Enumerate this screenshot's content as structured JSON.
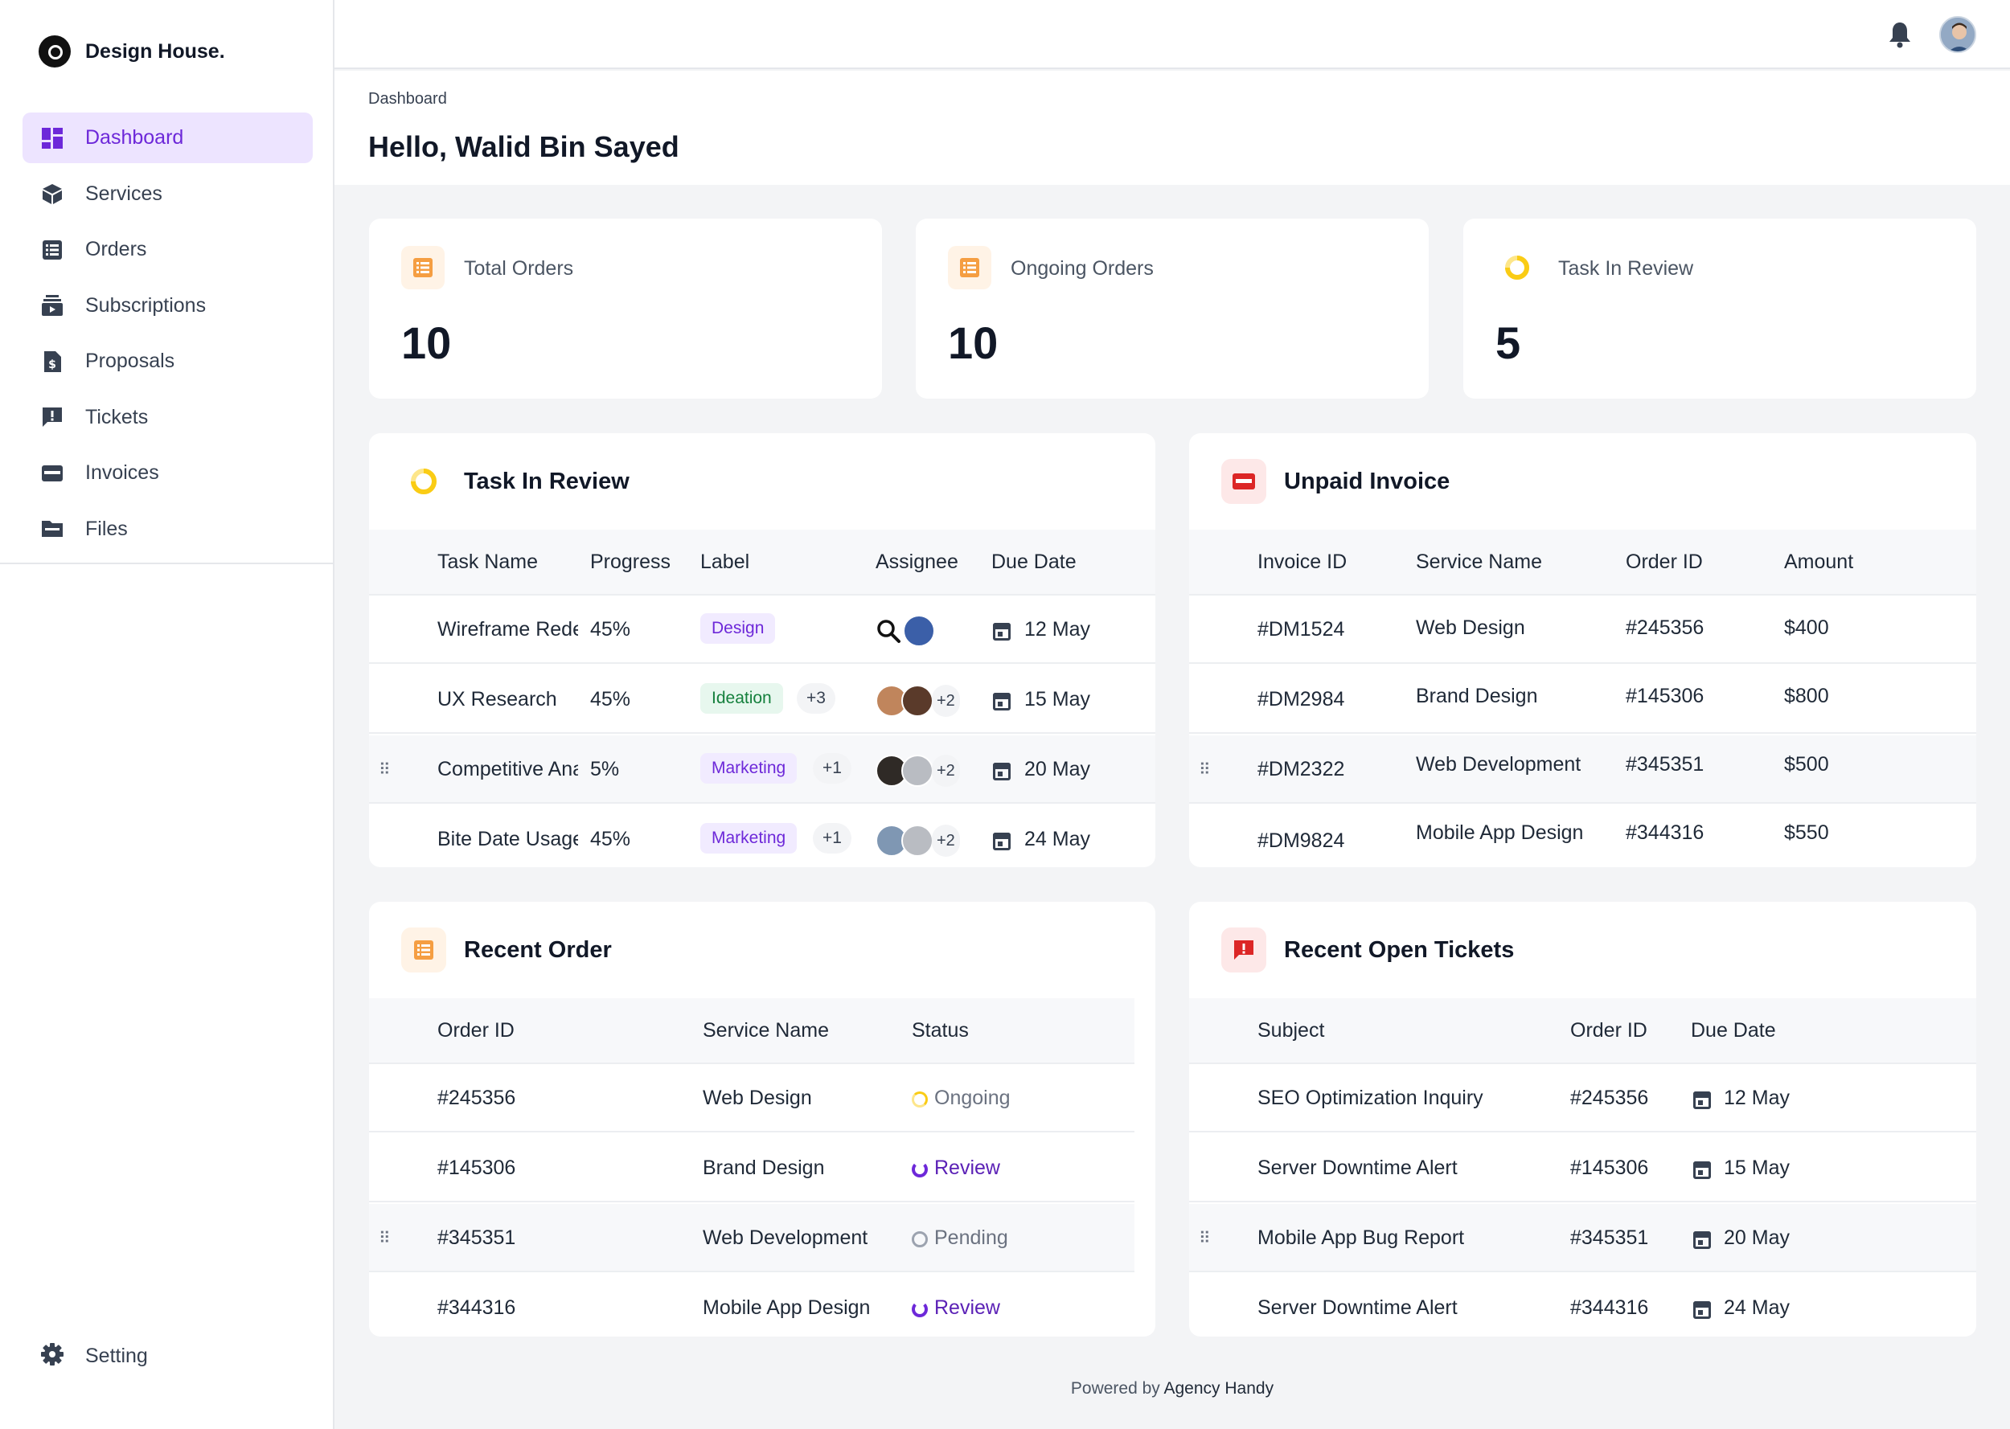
{
  "brand": {
    "name": "Design House."
  },
  "nav": {
    "items": [
      {
        "label": "Dashboard",
        "icon": "dashboard-icon",
        "active": true
      },
      {
        "label": "Services",
        "icon": "cube-icon"
      },
      {
        "label": "Orders",
        "icon": "list-icon"
      },
      {
        "label": "Subscriptions",
        "icon": "subscriptions-icon"
      },
      {
        "label": "Proposals",
        "icon": "dollar-document-icon"
      },
      {
        "label": "Tickets",
        "icon": "ticket-alert-icon"
      },
      {
        "label": "Invoices",
        "icon": "credit-card-icon"
      },
      {
        "label": "Files",
        "icon": "folder-icon"
      }
    ],
    "setting": "Setting"
  },
  "header": {
    "breadcrumb": "Dashboard",
    "greeting": "Hello, Walid Bin Sayed"
  },
  "stats": [
    {
      "title": "Total Orders",
      "value": "10",
      "icon": "orders-list-icon",
      "color": "#f59e42"
    },
    {
      "title": "Ongoing Orders",
      "value": "10",
      "icon": "orders-list-icon",
      "color": "#f59e42"
    },
    {
      "title": "Task In Review",
      "value": "5",
      "icon": "progress-ring-icon",
      "color": "#facc15"
    }
  ],
  "tasks": {
    "title": "Task In Review",
    "columns": [
      "Task Name",
      "Progress",
      "Label",
      "Assignee",
      "Due Date"
    ],
    "rows": [
      {
        "name": "Wireframe Redesign",
        "progress": "45%",
        "label": "Design",
        "label_type": "design",
        "extra": "",
        "assignee_extra": "",
        "due": "12 May"
      },
      {
        "name": "UX Research",
        "progress": "45%",
        "label": "Ideation",
        "label_type": "ideation",
        "extra": "+3",
        "assignee_extra": "+2",
        "due": "15 May"
      },
      {
        "name": "Competitive Analysis",
        "progress": "5%",
        "label": "Marketing",
        "label_type": "marketing",
        "extra": "+1",
        "assignee_extra": "+2",
        "due": "20 May"
      },
      {
        "name": "Bite Date Usage",
        "progress": "45%",
        "label": "Marketing",
        "label_type": "marketing",
        "extra": "+1",
        "assignee_extra": "+2",
        "due": "24 May"
      }
    ]
  },
  "invoices": {
    "title": "Unpaid Invoice",
    "columns": [
      "Invoice ID",
      "Service Name",
      "Order ID",
      "Amount"
    ],
    "rows": [
      {
        "id": "#DM1524",
        "service": "Web Design",
        "order": "#245356",
        "amount": "$400"
      },
      {
        "id": "#DM2984",
        "service": "Brand Design",
        "order": "#145306",
        "amount": "$800"
      },
      {
        "id": "#DM2322",
        "service": "Web Development",
        "order": "#345351",
        "amount": "$500"
      },
      {
        "id": "#DM9824",
        "service": "Mobile App Design",
        "order": "#344316",
        "amount": "$550"
      }
    ]
  },
  "orders": {
    "title": "Recent Order",
    "columns": [
      "Order ID",
      "Service Name",
      "Status"
    ],
    "rows": [
      {
        "id": "#245356",
        "service": "Web Design",
        "status": "Ongoing"
      },
      {
        "id": "#145306",
        "service": "Brand Design",
        "status": "Review"
      },
      {
        "id": "#345351",
        "service": "Web Development",
        "status": "Pending"
      },
      {
        "id": "#344316",
        "service": "Mobile App Design",
        "status": "Review"
      }
    ]
  },
  "tickets": {
    "title": "Recent Open Tickets",
    "columns": [
      "Subject",
      "Order ID",
      "Due Date"
    ],
    "rows": [
      {
        "subject": "SEO Optimization Inquiry",
        "order": "#245356",
        "due": "12 May"
      },
      {
        "subject": "Server Downtime Alert",
        "order": "#145306",
        "due": "15 May"
      },
      {
        "subject": "Mobile App Bug Report",
        "order": "#345351",
        "due": "20 May"
      },
      {
        "subject": "Server Downtime Alert",
        "order": "#344316",
        "due": "24 May"
      }
    ]
  },
  "footer": {
    "prefix": "Powered by",
    "name": "Agency Handy"
  },
  "colors": {
    "accent": "#6d28d9",
    "accent_bg": "#ede4ff",
    "orange": "#f59e42",
    "red": "#dc2626",
    "yellow": "#facc15"
  }
}
